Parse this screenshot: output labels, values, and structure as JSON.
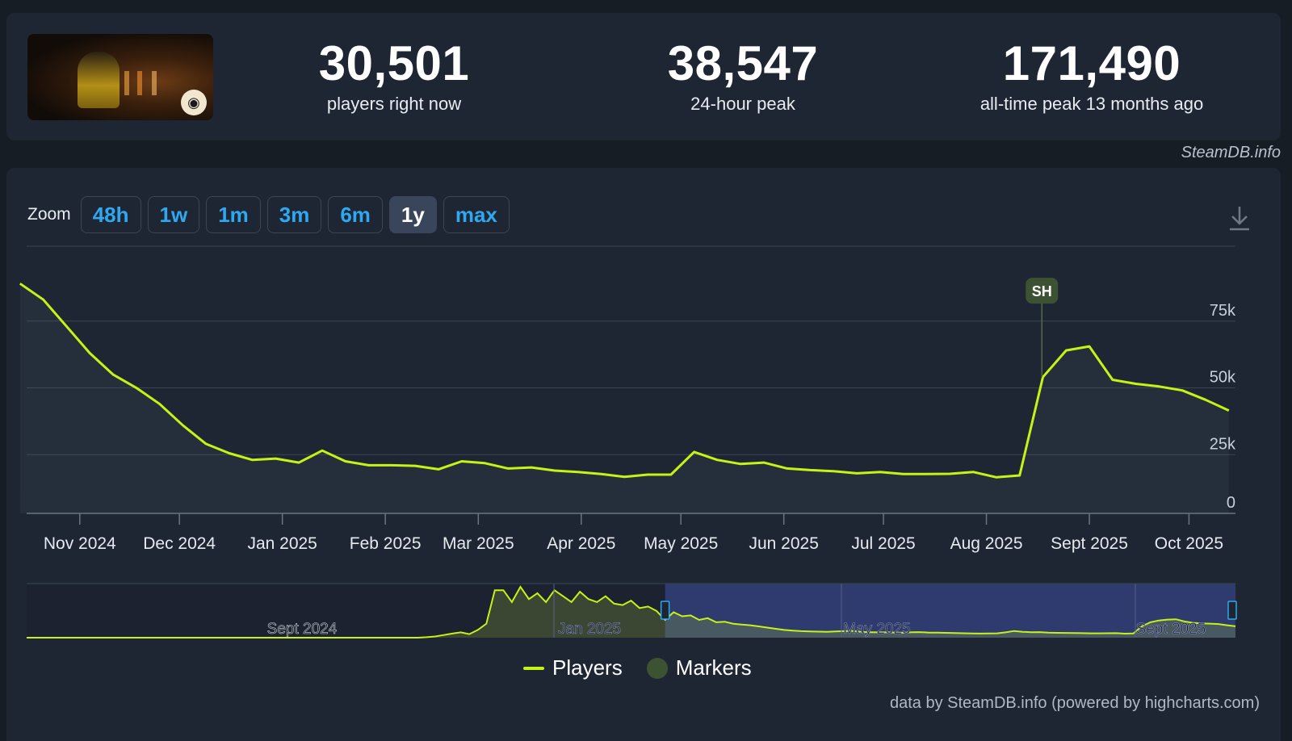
{
  "stats": {
    "current": {
      "value": "30,501",
      "label": "players right now"
    },
    "peak24": {
      "value": "38,547",
      "label": "24-hour peak"
    },
    "alltime": {
      "value": "171,490",
      "label": "all-time peak 13 months ago"
    }
  },
  "watermark": "SteamDB.info",
  "zoom": {
    "label": "Zoom",
    "options": [
      "48h",
      "1w",
      "1m",
      "3m",
      "6m",
      "1y",
      "max"
    ],
    "active": "1y"
  },
  "icons": {
    "download": "download-icon",
    "thumbnail_badge": "eye-icon"
  },
  "colors": {
    "line": "#c6f315",
    "marker": "#3d5232",
    "navigator_mask": "#33407a",
    "accent": "#2ea8f0"
  },
  "chart_data": {
    "type": "line",
    "series": [
      {
        "name": "Players",
        "x": [
          "2024-10-14",
          "2024-10-21",
          "2024-10-28",
          "2024-11-04",
          "2024-11-11",
          "2024-11-18",
          "2024-11-25",
          "2024-12-02",
          "2024-12-09",
          "2024-12-16",
          "2024-12-23",
          "2024-12-30",
          "2025-01-06",
          "2025-01-13",
          "2025-01-20",
          "2025-01-27",
          "2025-02-03",
          "2025-02-10",
          "2025-02-17",
          "2025-02-24",
          "2025-03-03",
          "2025-03-10",
          "2025-03-17",
          "2025-03-24",
          "2025-03-31",
          "2025-04-07",
          "2025-04-14",
          "2025-04-21",
          "2025-04-28",
          "2025-05-05",
          "2025-05-12",
          "2025-05-19",
          "2025-05-26",
          "2025-06-02",
          "2025-06-09",
          "2025-06-16",
          "2025-06-23",
          "2025-06-30",
          "2025-07-07",
          "2025-07-14",
          "2025-07-21",
          "2025-07-28",
          "2025-08-04",
          "2025-08-11",
          "2025-08-18",
          "2025-08-25",
          "2025-09-01",
          "2025-09-08",
          "2025-09-15",
          "2025-09-22",
          "2025-09-29",
          "2025-10-06",
          "2025-10-13"
        ],
        "y": [
          86000,
          80000,
          70000,
          60000,
          52000,
          47000,
          41000,
          33000,
          26000,
          22500,
          20000,
          20500,
          19000,
          23500,
          19500,
          18000,
          18000,
          17800,
          16500,
          19500,
          18800,
          16800,
          17200,
          16000,
          15500,
          14700,
          13700,
          14500,
          14500,
          23000,
          20000,
          18500,
          19000,
          16800,
          16200,
          15800,
          15000,
          15500,
          14700,
          14700,
          14800,
          15500,
          13500,
          14200,
          51000,
          61000,
          62500,
          50000,
          48500,
          47500,
          46000,
          42500,
          38500
        ]
      }
    ],
    "markers": [
      {
        "label": "SH",
        "x": "2025-08-25"
      }
    ],
    "x_ticks": [
      "Nov 2024",
      "Dec 2024",
      "Jan 2025",
      "Feb 2025",
      "Mar 2025",
      "Apr 2025",
      "May 2025",
      "Jun 2025",
      "Jul 2025",
      "Aug 2025",
      "Sept 2025",
      "Oct 2025"
    ],
    "y_ticks": [
      "0",
      "25k",
      "50k",
      "75k"
    ],
    "ylim": [
      0,
      100000
    ],
    "grid": true,
    "navigator": {
      "labels": [
        "Sept 2024",
        "Jan 2025",
        "May 2025",
        "Sept 2025"
      ],
      "values": [
        0,
        0,
        0,
        0,
        0,
        0,
        0,
        0,
        0,
        0,
        0,
        0,
        0,
        0,
        0,
        0,
        0,
        0,
        0,
        0,
        0,
        0,
        0,
        0,
        0,
        0,
        0,
        0,
        0,
        0,
        0,
        0,
        0,
        0,
        0,
        0,
        0,
        0,
        0,
        0,
        0,
        0,
        0,
        0,
        0,
        0,
        0,
        1500,
        4000,
        9000,
        14000,
        18000,
        12000,
        26000,
        47000,
        160000,
        160000,
        120000,
        171490,
        130000,
        150000,
        120000,
        160000,
        140000,
        120000,
        155000,
        130000,
        120000,
        140000,
        115000,
        110000,
        125000,
        100000,
        105000,
        90000,
        60000,
        86000,
        72000,
        75000,
        60000,
        66000,
        52000,
        54000,
        47000,
        44000,
        42000,
        38000,
        34000,
        30000,
        26000,
        24000,
        22000,
        21000,
        20500,
        20000,
        21000,
        22000,
        23000,
        19500,
        18500,
        18000,
        18000,
        17500,
        16500,
        18500,
        18800,
        17000,
        17000,
        16200,
        15500,
        15000,
        14500,
        14000,
        14500,
        14600,
        18000,
        22500,
        20000,
        18600,
        18800,
        17000,
        16300,
        16000,
        15400,
        15200,
        14800,
        14800,
        14900,
        15200,
        13600,
        14100,
        38000,
        52000,
        58000,
        61000,
        62000,
        55000,
        50000,
        48500,
        47500,
        46000,
        42000,
        38500
      ]
    },
    "legend": [
      "Players",
      "Markers"
    ],
    "legend_position": "bottom-center",
    "credits": "data by SteamDB.info (powered by highcharts.com)"
  }
}
